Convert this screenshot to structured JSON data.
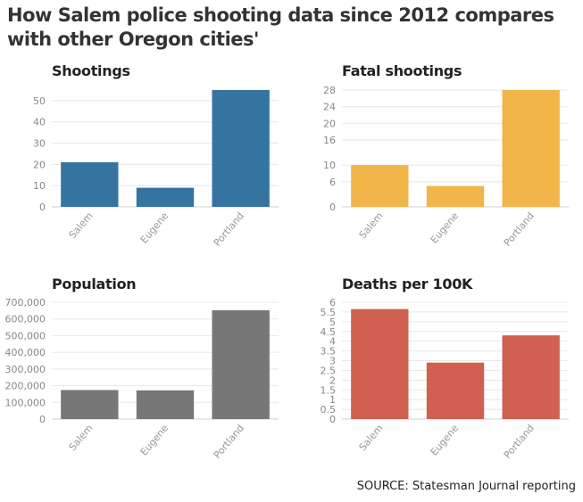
{
  "title": "How Salem police shooting data since 2012 compares with other Oregon cities'",
  "source": "SOURCE: Statesman Journal reporting",
  "chart_data": [
    {
      "type": "bar",
      "title": "Shootings",
      "color": "#3574a1",
      "categories": [
        "Salem",
        "Eugene",
        "Portland"
      ],
      "values": [
        21,
        9,
        55
      ],
      "ylim": [
        0,
        55
      ],
      "yticks": [
        0,
        10,
        20,
        30,
        40,
        50
      ],
      "ytick_labels": [
        "0",
        "10",
        "20",
        "30",
        "40",
        "50"
      ],
      "grid": true
    },
    {
      "type": "bar",
      "title": "Fatal shootings",
      "color": "#f0b64a",
      "categories": [
        "Salem",
        "Eugene",
        "Portland"
      ],
      "values": [
        10,
        5,
        28
      ],
      "ylim": [
        0,
        28
      ],
      "yticks": [
        0,
        6,
        10,
        16,
        20,
        24,
        28
      ],
      "ytick_labels": [
        "0",
        "6",
        "10",
        "16",
        "20",
        "24",
        "28"
      ],
      "grid": true
    },
    {
      "type": "bar",
      "title": "Population",
      "color": "#777777",
      "categories": [
        "Salem",
        "Eugene",
        "Portland"
      ],
      "values": [
        174000,
        172000,
        652000
      ],
      "ylim": [
        0,
        700000
      ],
      "yticks": [
        0,
        100000,
        200000,
        300000,
        400000,
        500000,
        600000,
        700000
      ],
      "ytick_labels": [
        "0",
        "100,000",
        "200,000",
        "300,000",
        "400,000",
        "500,000",
        "600,000",
        "700,000"
      ],
      "grid": true
    },
    {
      "type": "bar",
      "title": "Deaths per 100K",
      "color": "#d0604f",
      "categories": [
        "Salem",
        "Eugene",
        "Portland"
      ],
      "values": [
        5.65,
        2.9,
        4.3
      ],
      "ylim": [
        0,
        6
      ],
      "yticks": [
        0,
        0.5,
        1,
        1.5,
        2,
        2.5,
        3,
        3.5,
        4,
        4.5,
        5,
        5.5,
        6
      ],
      "ytick_labels": [
        "0",
        "0.5",
        "1",
        "1.5",
        "2",
        "2.5",
        "3",
        "3.5",
        "4",
        "4.5",
        "5",
        "5.5",
        "6"
      ],
      "grid": true
    }
  ]
}
